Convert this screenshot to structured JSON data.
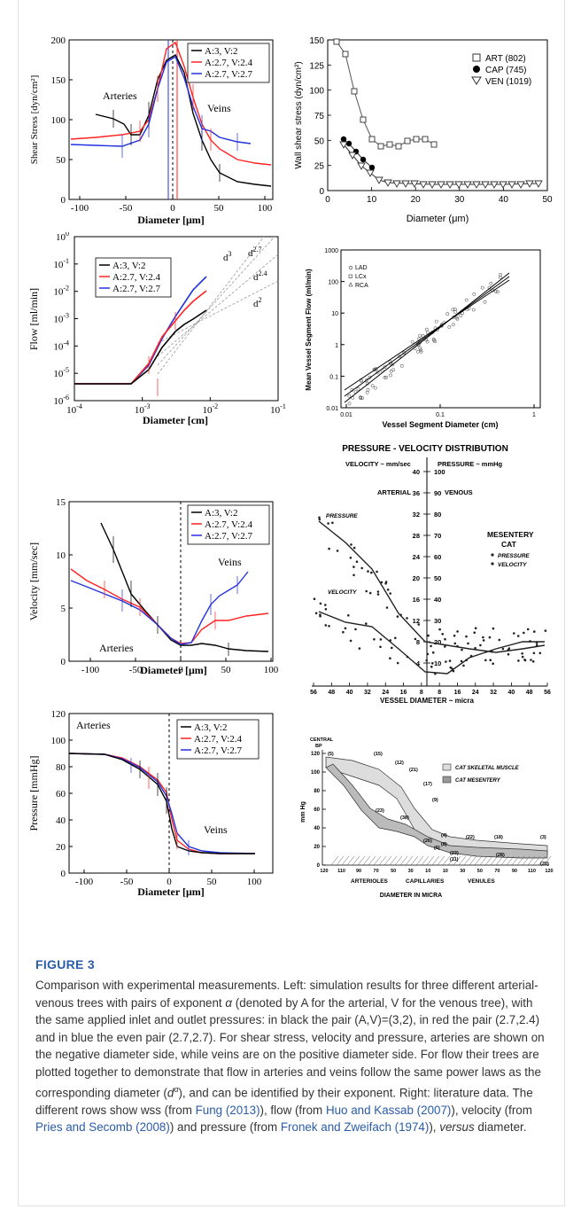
{
  "figure": {
    "label": "FIGURE 3",
    "caption_parts": [
      {
        "t": "Comparison with experimental measurements. Left: simulation results for three different arterial-venous trees with pairs of exponent "
      },
      {
        "t": "α",
        "style": "italic"
      },
      {
        "t": " (denoted by A for the arterial, V for the venous tree), with the same applied inlet and outlet pressures: in black the pair (A,V)=(3,2), in red the pair (2.7,2.4) and in blue the even pair (2.7,2.7). For shear stress, velocity and pressure, arteries are shown on the negative diameter side, while veins are on the positive diameter side. For flow their trees are plotted together to demonstrate that flow in arteries and veins follow the same power laws as the corresponding diameter ("
      },
      {
        "t": "d",
        "style": "italic"
      },
      {
        "t": "α",
        "style": "sup"
      },
      {
        "t": "), and can be identified by their exponent. Right: literature data. The different rows show wss (from "
      },
      {
        "t": "Fung (2013)",
        "style": "link"
      },
      {
        "t": "), flow (from "
      },
      {
        "t": "Huo and Kassab (2007)",
        "style": "link"
      },
      {
        "t": "), velocity (from "
      },
      {
        "t": "Pries and Secomb (2008)",
        "style": "link"
      },
      {
        "t": ") and pressure (from "
      },
      {
        "t": "Fronek and Zweifach (1974)",
        "style": "link"
      },
      {
        "t": "), "
      },
      {
        "t": "versus",
        "style": "italic"
      },
      {
        "t": " diameter."
      }
    ]
  },
  "colors": {
    "black": "#000000",
    "red": "#ff2222",
    "blue": "#2233dd",
    "caption_label": "#2a5ca8",
    "link": "#2a5ca8"
  },
  "sim_legend": [
    "A:3,   V:2",
    "A:2.7, V:2.4",
    "A:2.7, V:2.7"
  ],
  "shear": {
    "ylabel": "Shear Stress [dyn/cm²]",
    "xlabel": "Diameter [μm]",
    "arteries_label": "Arteries",
    "veins_label": "Veins",
    "xticks": [
      "-100",
      "-50",
      "0",
      "50",
      "100"
    ],
    "yticks": [
      "0",
      "50",
      "100",
      "150",
      "200"
    ]
  },
  "wss": {
    "ylabel": "Wall shear stress (dyn/cm²)",
    "xlabel": "Diameter (μm)",
    "xticks": [
      "0",
      "10",
      "20",
      "30",
      "40",
      "50"
    ],
    "yticks": [
      "0",
      "25",
      "50",
      "75",
      "100",
      "125",
      "150"
    ],
    "legend": [
      "ART (802)",
      "CAP (745)",
      "VEN (1019)"
    ]
  },
  "flow": {
    "ylabel": "Flow [ml/min]",
    "xlabel": "Diameter [cm]",
    "xticks": [
      "10",
      "10",
      "10",
      "10"
    ],
    "xexp": [
      "-4",
      "-3",
      "-2",
      "-1"
    ],
    "yticks": [
      "10",
      "10",
      "10",
      "10",
      "10",
      "10",
      "10"
    ],
    "yexp": [
      "0",
      "-1",
      "-2",
      "-3",
      "-4",
      "-5",
      "-6"
    ],
    "slopes": [
      "d",
      "d",
      "d",
      "d"
    ],
    "slope_exp": [
      "3",
      "2.7",
      "2.4",
      "2"
    ]
  },
  "huo": {
    "ylabel": "Mean Vessel Segment Flow (ml/min)",
    "xlabel": "Vessel Segment Diameter (cm)",
    "xticks": [
      "0.01",
      "0.1",
      "1"
    ],
    "yticks": [
      "1000",
      "100",
      "10",
      "1",
      "0.1",
      "0.01"
    ],
    "legend": [
      "LAD",
      "LCx",
      "RCA"
    ]
  },
  "velocity": {
    "ylabel": "Velocity [mm/sec]",
    "xlabel": "Diameter [μm]",
    "arteries_label": "Arteries",
    "veins_label": "Veins",
    "xticks": [
      "-100",
      "-50",
      "0",
      "50",
      "100"
    ],
    "yticks": [
      "0",
      "5",
      "10",
      "15"
    ]
  },
  "pries": {
    "title": "PRESSURE - VELOCITY DISTRIBUTION",
    "vel_unit": "VELOCITY ~ mm/sec",
    "press_unit": "PRESSURE ~ mmHg",
    "arterial": "ARTERIAL",
    "venous": "VENOUS",
    "mesentery": "MESENTERY",
    "cat": "CAT",
    "leg_pressure": "PRESSURE",
    "leg_velocity": "VELOCITY",
    "curve_pressure": "PRESSURE",
    "curve_velocity": "VELOCITY",
    "yleft": [
      "40",
      "36",
      "32",
      "28",
      "24",
      "20",
      "16",
      "12",
      "8",
      "4"
    ],
    "yright": [
      "100",
      "90",
      "80",
      "70",
      "60",
      "50",
      "40",
      "30",
      "20",
      "10"
    ],
    "xticks": [
      "56",
      "48",
      "40",
      "32",
      "24",
      "16",
      "8",
      "8",
      "16",
      "24",
      "32",
      "40",
      "48",
      "56"
    ],
    "xlabel": "VESSEL DIAMETER ~ micra"
  },
  "pressure": {
    "ylabel": "Pressure [mmHg]",
    "xlabel": "Diameter [μm]",
    "arteries_label": "Arteries",
    "veins_label": "Veins",
    "xticks": [
      "-100",
      "-50",
      "0",
      "50",
      "100"
    ],
    "yticks": [
      "0",
      "20",
      "40",
      "60",
      "80",
      "100",
      "120"
    ]
  },
  "fronek": {
    "central": "CENTRAL",
    "bp": "BP",
    "ylabel": "mm Hg",
    "yticks": [
      "120",
      "100",
      "80",
      "60",
      "40",
      "20",
      "0"
    ],
    "xticks": [
      "120",
      "110",
      "90",
      "70",
      "50",
      "30",
      "10",
      "10",
      "30",
      "50",
      "70",
      "90",
      "110",
      "120"
    ],
    "arterioles": "ARTERIOLES",
    "capillaries": "CAPILLARIES",
    "venules": "VENULES",
    "xlabel": "DIAMETER IN MICRA",
    "leg_muscle": "CAT SKELETAL MUSCLE",
    "leg_mesentery": "CAT MESENTERY",
    "counts": [
      "(5)",
      "(15)",
      "(12)",
      "(21)",
      "(17)",
      "(9)",
      "(23)",
      "(38)",
      "(26)",
      "(4)",
      "(6)",
      "(23)",
      "(22)",
      "(18)",
      "(11)",
      "(28)",
      "(3)",
      "(20)",
      "(8)"
    ]
  }
}
